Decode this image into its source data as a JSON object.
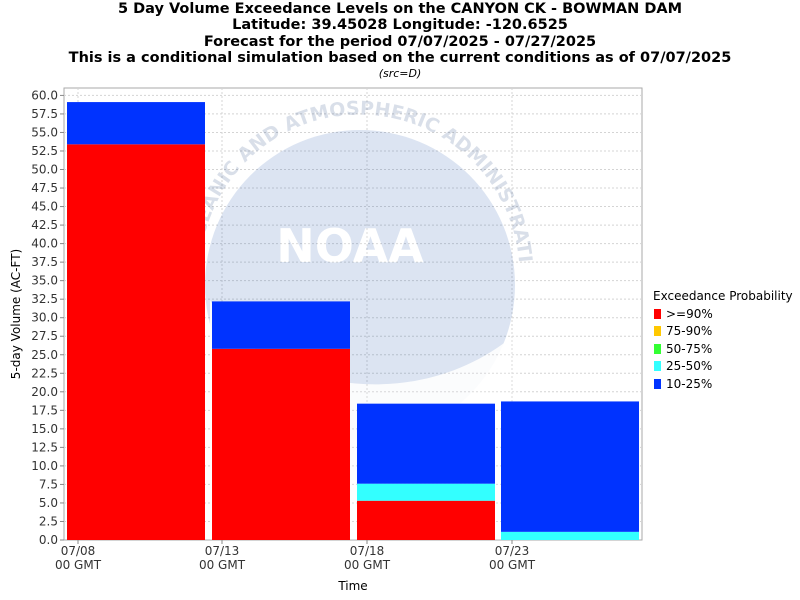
{
  "header": {
    "title_line1": "5 Day Volume Exceedance Levels on the CANYON CK - BOWMAN DAM",
    "title_line2": "Latitude: 39.45028 Longitude: -120.6525",
    "title_line3": "Forecast for the period 07/07/2025 - 07/27/2025",
    "title_line4": "This is a conditional simulation based on the current conditions as of 07/07/2025",
    "source_note": "(src=D)"
  },
  "watermark": {
    "text": "NOAA",
    "arc_text": "OCEANIC AND ATMOSPHERIC ADMINISTRATION"
  },
  "legend": {
    "title": "Exceedance Probability",
    "items": [
      {
        "label": ">=90%",
        "color": "#ff0000"
      },
      {
        "label": "75-90%",
        "color": "#ffc800"
      },
      {
        "label": "50-75%",
        "color": "#33ff33"
      },
      {
        "label": "25-50%",
        "color": "#33ffff"
      },
      {
        "label": "10-25%",
        "color": "#0033ff"
      }
    ]
  },
  "chart_data": {
    "type": "bar",
    "stacked": true,
    "ylabel": "5-day Volume (AC-FT)",
    "xlabel": "Time",
    "ylim": [
      0,
      61
    ],
    "ytick_step": 2.5,
    "yticks": [
      "0.0",
      "2.5",
      "5.0",
      "7.5",
      "10.0",
      "12.5",
      "15.0",
      "17.5",
      "20.0",
      "22.5",
      "25.0",
      "27.5",
      "30.0",
      "32.5",
      "35.0",
      "37.5",
      "40.0",
      "42.5",
      "45.0",
      "47.5",
      "50.0",
      "52.5",
      "55.0",
      "57.5",
      "60.0"
    ],
    "xticks": [
      {
        "line1": "07/08",
        "line2": "00 GMT"
      },
      {
        "line1": "07/13",
        "line2": "00 GMT"
      },
      {
        "line1": "07/18",
        "line2": "00 GMT"
      },
      {
        "line1": "07/23",
        "line2": "00 GMT"
      }
    ],
    "categories": [
      "07/08",
      "07/13",
      "07/18",
      "07/23"
    ],
    "series": [
      {
        "name": ">=90%",
        "color": "#ff0000",
        "values": [
          53.4,
          25.8,
          5.3,
          0
        ]
      },
      {
        "name": "75-90%",
        "color": "#ffc800",
        "values": [
          0,
          0,
          0,
          0
        ]
      },
      {
        "name": "50-75%",
        "color": "#33ff33",
        "values": [
          0,
          0,
          0,
          0
        ]
      },
      {
        "name": "25-50%",
        "color": "#33ffff",
        "values": [
          0,
          0,
          2.3,
          1.1
        ]
      },
      {
        "name": "10-25%",
        "color": "#0033ff",
        "values": [
          5.7,
          6.4,
          10.8,
          17.6
        ]
      }
    ],
    "grid": true,
    "legend_position": "right"
  }
}
